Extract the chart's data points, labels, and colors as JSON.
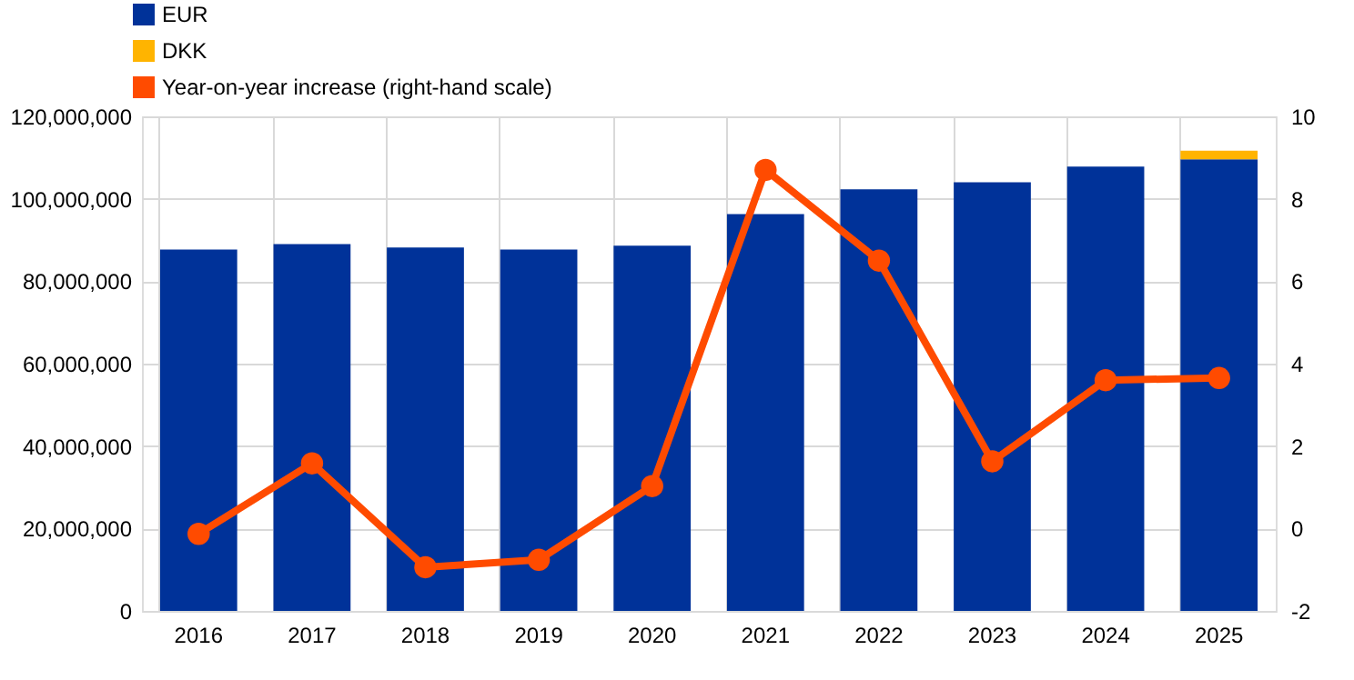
{
  "chart_data": {
    "type": "bar",
    "stacked": true,
    "categories": [
      "2016",
      "2017",
      "2018",
      "2019",
      "2020",
      "2021",
      "2022",
      "2023",
      "2024",
      "2025"
    ],
    "series": [
      {
        "name": "EUR",
        "color": "#003299",
        "values": [
          87700000,
          89000000,
          88200000,
          87700000,
          88600000,
          96300000,
          102300000,
          104000000,
          107800000,
          109600000
        ]
      },
      {
        "name": "DKK",
        "color": "#ffb400",
        "values": [
          null,
          null,
          null,
          null,
          null,
          null,
          null,
          null,
          null,
          2100000
        ]
      },
      {
        "name": "Year-on-year increase (right-hand scale)",
        "color": "#ff4b00",
        "type": "line",
        "axis": "y2",
        "marker": "circle",
        "values": [
          -0.13,
          1.58,
          -0.94,
          -0.76,
          1.03,
          8.7,
          6.5,
          1.63,
          3.6,
          3.65
        ]
      }
    ],
    "ylim": [
      0,
      120000000
    ],
    "yticks": [
      0,
      {
        "value": 20000000,
        "label": "20,000,000"
      },
      {
        "value": 40000000,
        "label": "40,000,000"
      },
      {
        "value": 60000000,
        "label": "60,000,000"
      },
      {
        "value": 80000000,
        "label": "80,000,000"
      },
      {
        "value": 100000000,
        "label": "100,000,000"
      },
      {
        "value": 120000000,
        "label": "120,000,000"
      }
    ],
    "y2lim": [
      -2,
      10
    ],
    "y2ticks": [
      -2,
      0,
      2,
      4,
      6,
      8,
      10
    ],
    "grid": true,
    "legend": "top left"
  }
}
